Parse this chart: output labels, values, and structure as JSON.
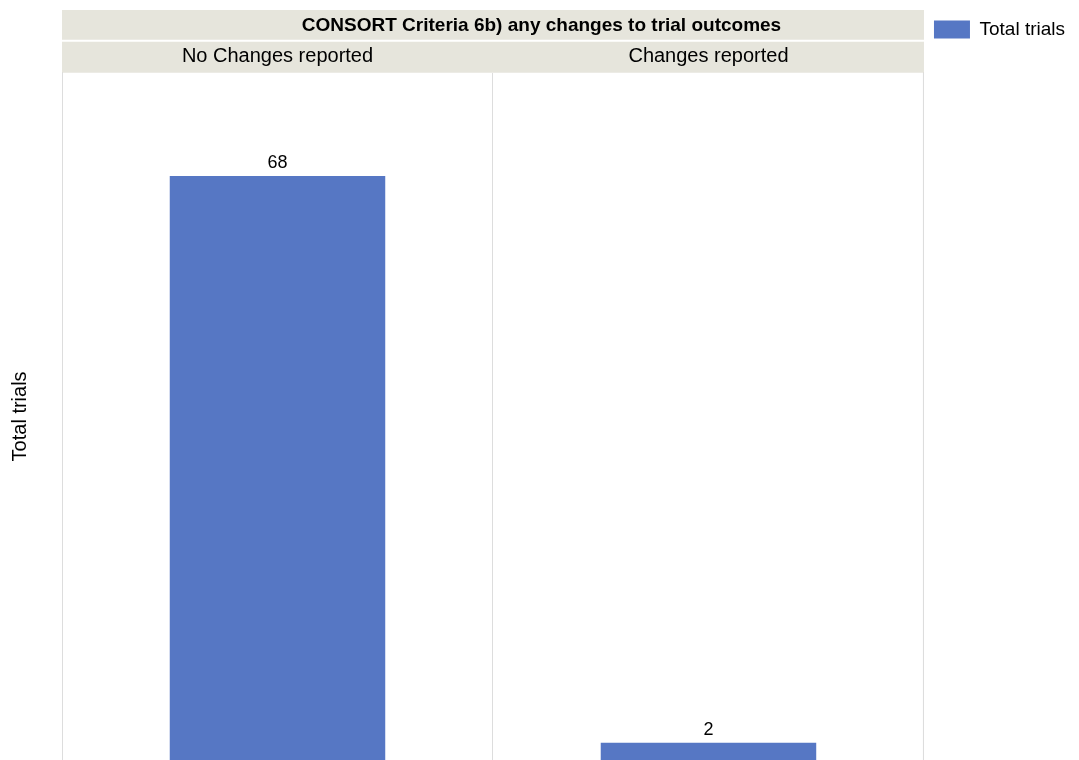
{
  "chart_data": {
    "type": "bar",
    "title": "CONSORT Criteria 6b) any changes to trial outcomes",
    "ylabel": "Total trials",
    "categories": [
      "No Changes reported",
      "Changes reported"
    ],
    "series": [
      {
        "name": "Total trials",
        "color": "#5677c4",
        "values": [
          68,
          2
        ]
      }
    ],
    "data_labels": true,
    "legend": "top right",
    "grid": "x"
  }
}
